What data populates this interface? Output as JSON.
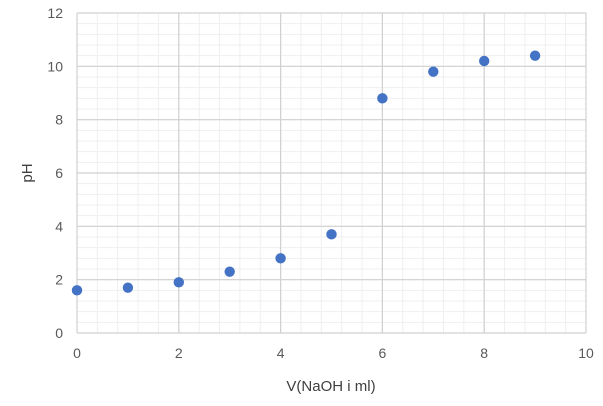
{
  "chart_data": {
    "type": "scatter",
    "title": "",
    "xlabel": "V(NaOH i ml)",
    "ylabel": "pH",
    "xlim": [
      0,
      10
    ],
    "ylim": [
      0,
      12
    ],
    "x_ticks": [
      0,
      2,
      4,
      6,
      8,
      10
    ],
    "y_ticks": [
      0,
      2,
      4,
      6,
      8,
      10,
      12
    ],
    "grid": true,
    "minor_grid": true,
    "legend": "none",
    "marker_color": "#4472C4",
    "series": [
      {
        "x": [
          0,
          1,
          2,
          3,
          4,
          5,
          6,
          7,
          8,
          9
        ],
        "y": [
          1.6,
          1.7,
          1.9,
          2.3,
          2.8,
          3.7,
          8.8,
          9.8,
          10.2,
          10.4
        ]
      }
    ]
  }
}
